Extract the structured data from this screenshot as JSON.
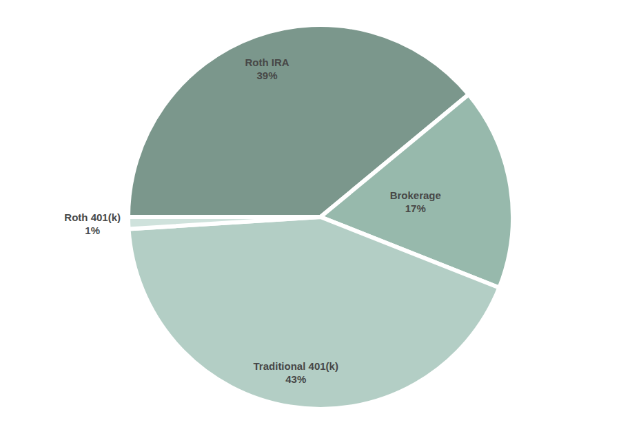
{
  "chart_data": {
    "type": "pie",
    "categories": [
      "Roth IRA",
      "Brokerage",
      "Traditional 401(k)",
      "Roth 401(k)"
    ],
    "values": [
      39,
      17,
      43,
      1
    ],
    "value_labels": [
      "39%",
      "17%",
      "43%",
      "1%"
    ],
    "colors": [
      "#7b978c",
      "#97b9ac",
      "#b3cec5",
      "#cfe2dc"
    ],
    "data_labels": true
  }
}
